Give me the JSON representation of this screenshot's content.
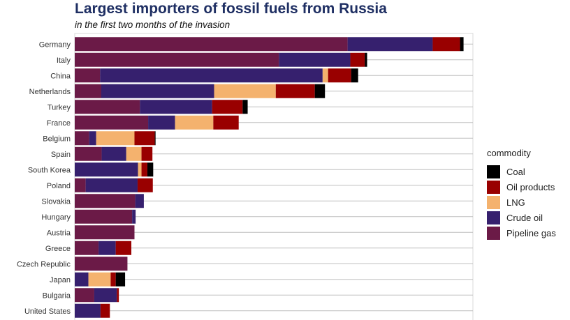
{
  "chart_data": {
    "type": "bar",
    "orientation": "horizontal",
    "stacked": true,
    "title": "Largest importers of fossil fuels from Russia",
    "subtitle": "in the first two months of the invasion",
    "xlabel": "",
    "ylabel": "",
    "xlim": [
      0,
      10.2
    ],
    "grid": true,
    "legend_title": "commodity",
    "legend_placement": "right",
    "categories": [
      "Germany",
      "Italy",
      "China",
      "Netherlands",
      "Turkey",
      "France",
      "Belgium",
      "Spain",
      "South Korea",
      "Poland",
      "Slovakia",
      "Hungary",
      "Austria",
      "Greece",
      "Czech Republic",
      "Japan",
      "Bulgaria",
      "United States"
    ],
    "series": [
      {
        "name": "Pipeline gas",
        "color": "#6b1a47",
        "values": [
          6.99,
          5.23,
          0.65,
          0.68,
          1.67,
          1.88,
          0.37,
          0.69,
          0.0,
          0.28,
          1.55,
          1.47,
          1.53,
          0.61,
          1.35,
          0.0,
          0.5,
          0.0
        ]
      },
      {
        "name": "Crude oil",
        "color": "#36206e",
        "values": [
          2.18,
          1.83,
          5.7,
          2.89,
          1.85,
          0.69,
          0.18,
          0.63,
          1.62,
          1.33,
          0.22,
          0.09,
          0.0,
          0.44,
          0.0,
          0.35,
          0.58,
          0.66
        ]
      },
      {
        "name": "LNG",
        "color": "#f4b26e",
        "values": [
          0.0,
          0.0,
          0.14,
          1.58,
          0.0,
          0.98,
          0.98,
          0.39,
          0.09,
          0.0,
          0.0,
          0.0,
          0.0,
          0.0,
          0.0,
          0.57,
          0.0,
          0.0
        ]
      },
      {
        "name": "Oil products",
        "color": "#990000",
        "values": [
          0.7,
          0.37,
          0.59,
          1.0,
          0.78,
          0.65,
          0.52,
          0.28,
          0.15,
          0.39,
          0.0,
          0.0,
          0.0,
          0.4,
          0.0,
          0.13,
          0.05,
          0.24
        ]
      },
      {
        "name": "Coal",
        "color": "#000000",
        "values": [
          0.09,
          0.06,
          0.18,
          0.26,
          0.13,
          0.0,
          0.02,
          0.0,
          0.15,
          0.0,
          0.0,
          0.0,
          0.0,
          0.0,
          0.0,
          0.24,
          0.0,
          0.0
        ]
      }
    ],
    "legend_order": [
      "Coal",
      "Oil products",
      "LNG",
      "Crude oil",
      "Pipeline gas"
    ]
  }
}
